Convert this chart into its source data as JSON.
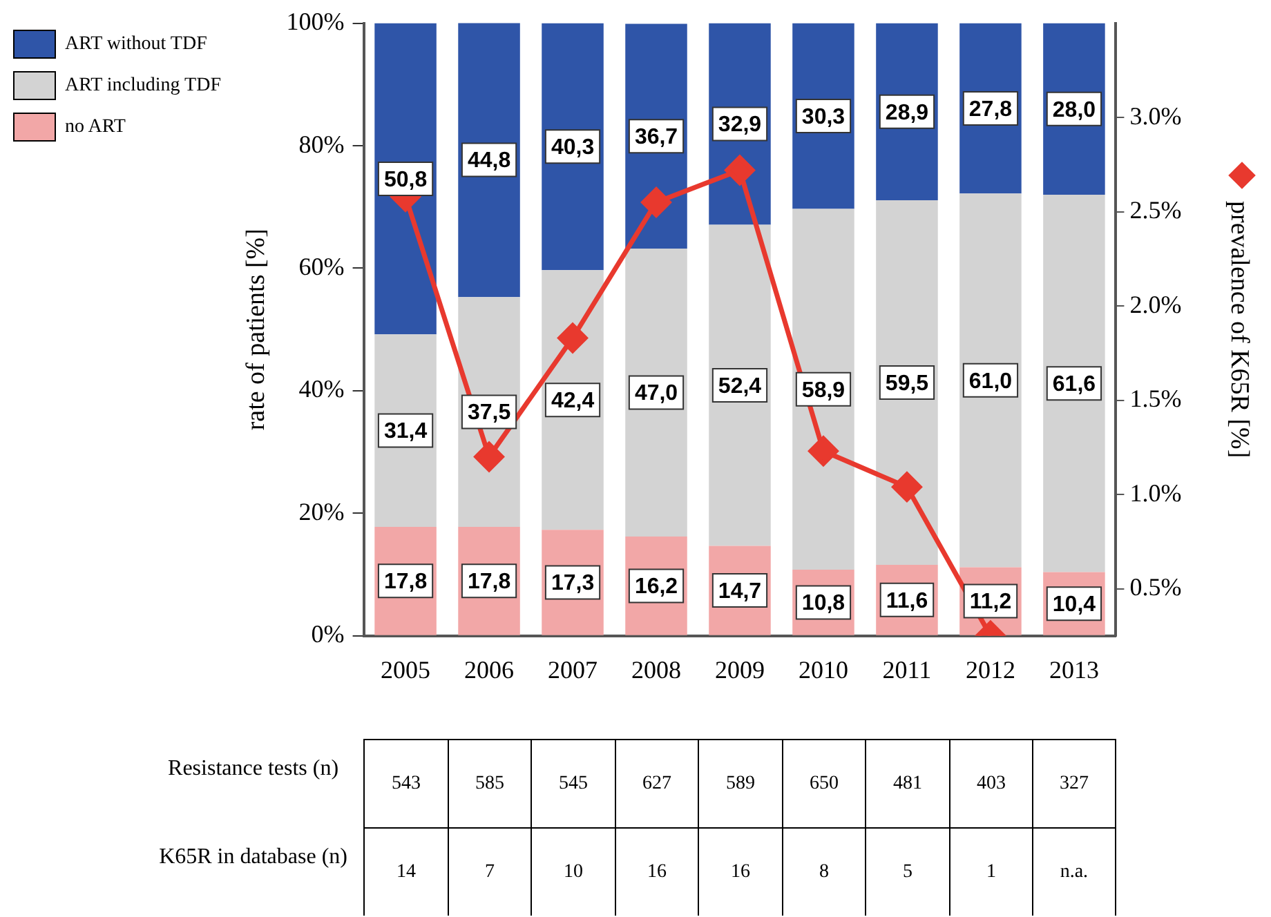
{
  "chart_data": {
    "type": "bar",
    "stacked": true,
    "legend": "top left",
    "grid": false,
    "marker": "diamond",
    "ylabel": "rate of patients [%]",
    "y2label": "prevalence of K65R [%]",
    "categories": [
      "2005",
      "2006",
      "2007",
      "2008",
      "2009",
      "2010",
      "2011",
      "2012",
      "2013"
    ],
    "ylim": [
      0,
      100
    ],
    "yticks": [
      {
        "value": 0,
        "label": "0%"
      },
      {
        "value": 20,
        "label": "20%"
      },
      {
        "value": 40,
        "label": "40%"
      },
      {
        "value": 60,
        "label": "60%"
      },
      {
        "value": 80,
        "label": "80%"
      },
      {
        "value": 100,
        "label": "100%"
      }
    ],
    "y2lim": [
      0.25,
      3.5
    ],
    "y2ticks": [
      {
        "value": 0.5,
        "label": "0.5%"
      },
      {
        "value": 1.0,
        "label": "1.0%"
      },
      {
        "value": 1.5,
        "label": "1.5%"
      },
      {
        "value": 2.0,
        "label": "2.0%"
      },
      {
        "value": 2.5,
        "label": "2.5%"
      },
      {
        "value": 3.0,
        "label": "3.0%"
      }
    ],
    "series": [
      {
        "name": "no ART",
        "color": "#f2a7a7",
        "values": [
          17.8,
          17.8,
          17.3,
          16.2,
          14.7,
          10.8,
          11.6,
          11.2,
          10.4
        ],
        "value_labels": [
          "17,8",
          "17,8",
          "17,3",
          "16,2",
          "14,7",
          "10,8",
          "11,6",
          "11,2",
          "10,4"
        ]
      },
      {
        "name": "ART including TDF",
        "color": "#d3d3d3",
        "values": [
          31.4,
          37.5,
          42.4,
          47.0,
          52.4,
          58.9,
          59.5,
          61.0,
          61.6
        ],
        "value_labels": [
          "31,4",
          "37,5",
          "42,4",
          "47,0",
          "52,4",
          "58,9",
          "59,5",
          "61,0",
          "61,6"
        ]
      },
      {
        "name": "ART without TDF",
        "color": "#2f55a8",
        "values": [
          50.8,
          44.8,
          40.3,
          36.7,
          32.9,
          30.3,
          28.9,
          27.8,
          28.0
        ],
        "value_labels": [
          "50,8",
          "44,8",
          "40,3",
          "36,7",
          "32,9",
          "30,3",
          "28,9",
          "27,8",
          "28,0"
        ]
      },
      {
        "type": "line",
        "axis": "y2",
        "color": "#e8392e",
        "values": [
          2.58,
          1.2,
          1.83,
          2.55,
          2.72,
          1.23,
          1.04,
          0.25,
          null
        ]
      }
    ],
    "annotations": [
      "Resistance tests (n)",
      "543",
      "585",
      "545",
      "627",
      "589",
      "650",
      "481",
      "403",
      "327",
      "K65R in database (n)",
      "14",
      "7",
      "10",
      "16",
      "16",
      "8",
      "5",
      "1",
      "n.a."
    ]
  }
}
